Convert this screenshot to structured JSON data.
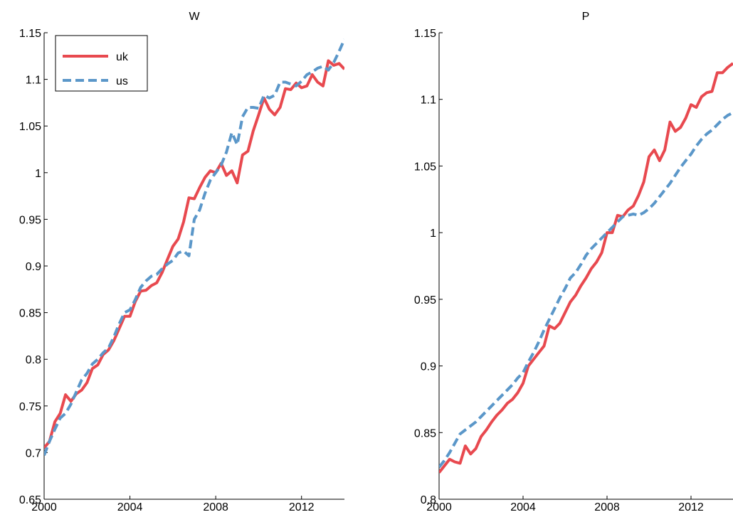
{
  "figure": {
    "background": "#ffffff"
  },
  "chart_data": [
    {
      "type": "line",
      "title": "W",
      "xlabel": "",
      "ylabel": "",
      "xlim": [
        2000,
        2014
      ],
      "ylim": [
        0.65,
        1.15
      ],
      "xticks": [
        2000,
        2004,
        2008,
        2012
      ],
      "xtick_labels": [
        "2000",
        "2004",
        "2008",
        "2012"
      ],
      "yticks": [
        0.65,
        0.7,
        0.75,
        0.8,
        0.85,
        0.9,
        0.95,
        1,
        1.05,
        1.1,
        1.15
      ],
      "ytick_labels": [
        "0.65",
        "0.7",
        "0.75",
        "0.8",
        "0.85",
        "0.9",
        "0.95",
        "1",
        "1.05",
        "1.1",
        "1.15"
      ],
      "grid": false,
      "legend": {
        "position": "top-left",
        "entries": [
          "uk",
          "us"
        ]
      },
      "series": [
        {
          "name": "uk",
          "color": "#e8494f",
          "style": "solid",
          "x": [
            2000.0,
            2000.25,
            2000.5,
            2000.75,
            2001.0,
            2001.25,
            2001.5,
            2001.75,
            2002.0,
            2002.25,
            2002.5,
            2002.75,
            2003.0,
            2003.25,
            2003.5,
            2003.75,
            2004.0,
            2004.25,
            2004.5,
            2004.75,
            2005.0,
            2005.25,
            2005.5,
            2005.75,
            2006.0,
            2006.25,
            2006.5,
            2006.75,
            2007.0,
            2007.25,
            2007.5,
            2007.75,
            2008.0,
            2008.25,
            2008.5,
            2008.75,
            2009.0,
            2009.25,
            2009.5,
            2009.75,
            2010.0,
            2010.25,
            2010.5,
            2010.75,
            2011.0,
            2011.25,
            2011.5,
            2011.75,
            2012.0,
            2012.25,
            2012.5,
            2012.75,
            2013.0,
            2013.25,
            2013.5,
            2013.75,
            2014.0
          ],
          "y": [
            0.705,
            0.712,
            0.733,
            0.742,
            0.762,
            0.755,
            0.763,
            0.767,
            0.775,
            0.79,
            0.794,
            0.805,
            0.81,
            0.82,
            0.833,
            0.846,
            0.846,
            0.862,
            0.873,
            0.874,
            0.879,
            0.882,
            0.893,
            0.907,
            0.921,
            0.929,
            0.947,
            0.973,
            0.972,
            0.984,
            0.995,
            1.002,
            1.0,
            1.01,
            0.997,
            1.002,
            0.989,
            1.019,
            1.023,
            1.045,
            1.062,
            1.08,
            1.068,
            1.062,
            1.07,
            1.09,
            1.089,
            1.096,
            1.091,
            1.093,
            1.105,
            1.097,
            1.093,
            1.12,
            1.115,
            1.117,
            1.111
          ]
        },
        {
          "name": "us",
          "color": "#5b97c9",
          "style": "dashed",
          "x": [
            2000.0,
            2000.25,
            2000.5,
            2000.75,
            2001.0,
            2001.25,
            2001.5,
            2001.75,
            2002.0,
            2002.25,
            2002.5,
            2002.75,
            2003.0,
            2003.25,
            2003.5,
            2003.75,
            2004.0,
            2004.25,
            2004.5,
            2004.75,
            2005.0,
            2005.25,
            2005.5,
            2005.75,
            2006.0,
            2006.25,
            2006.5,
            2006.75,
            2007.0,
            2007.25,
            2007.5,
            2007.75,
            2008.0,
            2008.25,
            2008.5,
            2008.75,
            2009.0,
            2009.25,
            2009.5,
            2009.75,
            2010.0,
            2010.25,
            2010.5,
            2010.75,
            2011.0,
            2011.25,
            2011.5,
            2011.75,
            2012.0,
            2012.25,
            2012.5,
            2012.75,
            2013.0,
            2013.25,
            2013.5,
            2013.75,
            2014.0
          ],
          "y": [
            0.697,
            0.712,
            0.725,
            0.737,
            0.742,
            0.752,
            0.765,
            0.778,
            0.785,
            0.795,
            0.8,
            0.807,
            0.812,
            0.824,
            0.838,
            0.85,
            0.853,
            0.864,
            0.877,
            0.884,
            0.889,
            0.891,
            0.897,
            0.902,
            0.906,
            0.914,
            0.916,
            0.911,
            0.95,
            0.96,
            0.978,
            0.992,
            1.0,
            1.008,
            1.022,
            1.043,
            1.03,
            1.06,
            1.07,
            1.07,
            1.069,
            1.083,
            1.08,
            1.083,
            1.097,
            1.097,
            1.095,
            1.093,
            1.098,
            1.105,
            1.108,
            1.112,
            1.114,
            1.11,
            1.118,
            1.13,
            1.143
          ]
        }
      ]
    },
    {
      "type": "line",
      "title": "P",
      "xlabel": "",
      "ylabel": "",
      "xlim": [
        2000,
        2014
      ],
      "ylim": [
        0.8,
        1.15
      ],
      "xticks": [
        2000,
        2004,
        2008,
        2012
      ],
      "xtick_labels": [
        "2000",
        "2004",
        "2008",
        "2012"
      ],
      "yticks": [
        0.8,
        0.85,
        0.9,
        0.95,
        1,
        1.05,
        1.1,
        1.15
      ],
      "ytick_labels": [
        "0.8",
        "0.85",
        "0.9",
        "0.95",
        "1",
        "1.05",
        "1.1",
        "1.15"
      ],
      "grid": false,
      "series": [
        {
          "name": "uk",
          "color": "#e8494f",
          "style": "solid",
          "x": [
            2000.0,
            2000.25,
            2000.5,
            2000.75,
            2001.0,
            2001.25,
            2001.5,
            2001.75,
            2002.0,
            2002.25,
            2002.5,
            2002.75,
            2003.0,
            2003.25,
            2003.5,
            2003.75,
            2004.0,
            2004.25,
            2004.5,
            2004.75,
            2005.0,
            2005.25,
            2005.5,
            2005.75,
            2006.0,
            2006.25,
            2006.5,
            2006.75,
            2007.0,
            2007.25,
            2007.5,
            2007.75,
            2008.0,
            2008.25,
            2008.5,
            2008.75,
            2009.0,
            2009.25,
            2009.5,
            2009.75,
            2010.0,
            2010.25,
            2010.5,
            2010.75,
            2011.0,
            2011.25,
            2011.5,
            2011.75,
            2012.0,
            2012.25,
            2012.5,
            2012.75,
            2013.0,
            2013.25,
            2013.5,
            2013.75,
            2014.0
          ],
          "y": [
            0.82,
            0.825,
            0.83,
            0.828,
            0.827,
            0.84,
            0.834,
            0.838,
            0.847,
            0.852,
            0.858,
            0.863,
            0.867,
            0.872,
            0.875,
            0.88,
            0.887,
            0.9,
            0.905,
            0.91,
            0.915,
            0.93,
            0.928,
            0.932,
            0.94,
            0.948,
            0.953,
            0.96,
            0.966,
            0.973,
            0.978,
            0.985,
            1.0,
            1.0,
            1.013,
            1.012,
            1.017,
            1.02,
            1.028,
            1.038,
            1.057,
            1.062,
            1.054,
            1.062,
            1.083,
            1.076,
            1.079,
            1.086,
            1.096,
            1.094,
            1.102,
            1.105,
            1.106,
            1.12,
            1.12,
            1.124,
            1.127
          ]
        },
        {
          "name": "us",
          "color": "#5b97c9",
          "style": "dashed",
          "x": [
            2000.0,
            2000.25,
            2000.5,
            2000.75,
            2001.0,
            2001.25,
            2001.5,
            2001.75,
            2002.0,
            2002.25,
            2002.5,
            2002.75,
            2003.0,
            2003.25,
            2003.5,
            2003.75,
            2004.0,
            2004.25,
            2004.5,
            2004.75,
            2005.0,
            2005.25,
            2005.5,
            2005.75,
            2006.0,
            2006.25,
            2006.5,
            2006.75,
            2007.0,
            2007.25,
            2007.5,
            2007.75,
            2008.0,
            2008.25,
            2008.5,
            2008.75,
            2009.0,
            2009.25,
            2009.5,
            2009.75,
            2010.0,
            2010.25,
            2010.5,
            2010.75,
            2011.0,
            2011.25,
            2011.5,
            2011.75,
            2012.0,
            2012.25,
            2012.5,
            2012.75,
            2013.0,
            2013.25,
            2013.5,
            2013.75,
            2014.0
          ],
          "y": [
            0.824,
            0.829,
            0.835,
            0.842,
            0.849,
            0.852,
            0.855,
            0.858,
            0.862,
            0.866,
            0.87,
            0.874,
            0.878,
            0.882,
            0.886,
            0.891,
            0.895,
            0.903,
            0.91,
            0.918,
            0.927,
            0.935,
            0.943,
            0.951,
            0.958,
            0.966,
            0.97,
            0.976,
            0.983,
            0.988,
            0.992,
            0.996,
            1.0,
            1.004,
            1.008,
            1.012,
            1.013,
            1.014,
            1.013,
            1.015,
            1.018,
            1.022,
            1.027,
            1.032,
            1.037,
            1.043,
            1.049,
            1.054,
            1.059,
            1.065,
            1.07,
            1.074,
            1.077,
            1.081,
            1.085,
            1.088,
            1.09
          ]
        }
      ]
    }
  ]
}
